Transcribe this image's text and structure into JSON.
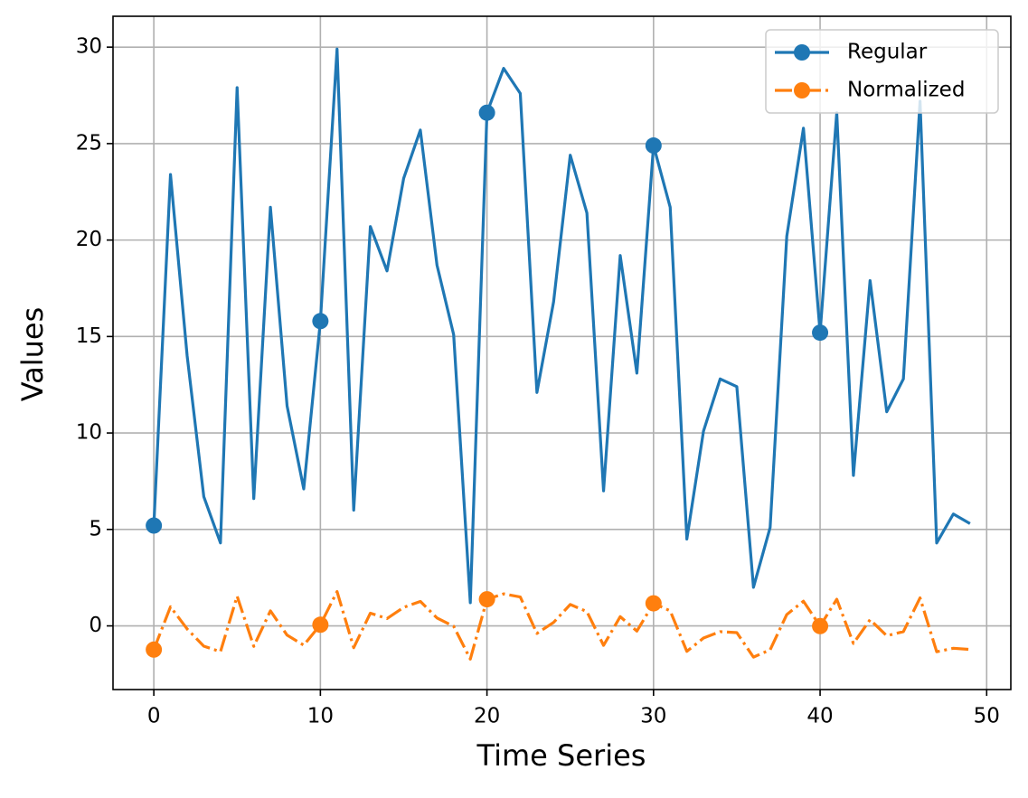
{
  "chart_data": {
    "type": "line",
    "xlabel": "Time Series",
    "ylabel": "Values",
    "x": [
      0,
      1,
      2,
      3,
      4,
      5,
      6,
      7,
      8,
      9,
      10,
      11,
      12,
      13,
      14,
      15,
      16,
      17,
      18,
      19,
      20,
      21,
      22,
      23,
      24,
      25,
      26,
      27,
      28,
      29,
      30,
      31,
      32,
      33,
      34,
      35,
      36,
      37,
      38,
      39,
      40,
      41,
      42,
      43,
      44,
      45,
      46,
      47,
      48,
      49
    ],
    "series": [
      {
        "name": "Regular",
        "color": "#1f77b4",
        "linestyle": "solid",
        "markevery": 10,
        "values": [
          5.2,
          23.4,
          14,
          6.7,
          4.3,
          27.9,
          6.6,
          21.7,
          11.4,
          7.1,
          15.8,
          29.9,
          6.0,
          20.7,
          18.4,
          23.2,
          25.7,
          18.7,
          15.1,
          1.2,
          26.6,
          28.9,
          27.6,
          12.1,
          16.8,
          24.4,
          21.4,
          7.0,
          19.2,
          13.1,
          24.9,
          21.7,
          4.5,
          10.1,
          12.8,
          12.4,
          2.0,
          5.1,
          20.2,
          25.8,
          15.2,
          26.6,
          7.8,
          17.9,
          11.1,
          12.8,
          27.2,
          4.3,
          5.8,
          5.3
        ]
      },
      {
        "name": "Normalized",
        "color": "#ff7f0e",
        "linestyle": "dashdot",
        "markevery": 10,
        "values": [
          -1.23,
          0.99,
          -0.16,
          -1.05,
          -1.34,
          1.54,
          -1.06,
          0.78,
          -0.48,
          -1.0,
          0.06,
          1.78,
          -1.13,
          0.66,
          0.38,
          0.96,
          1.27,
          0.41,
          -0.02,
          -1.72,
          1.38,
          1.66,
          1.5,
          -0.39,
          0.18,
          1.11,
          0.74,
          -1.01,
          0.48,
          -0.27,
          1.17,
          0.78,
          -1.32,
          -0.63,
          -0.3,
          -0.35,
          -1.62,
          -1.24,
          0.59,
          1.28,
          -0.01,
          1.38,
          -0.91,
          0.32,
          -0.51,
          -0.3,
          1.45,
          -1.34,
          -1.16,
          -1.22
        ]
      }
    ],
    "xlim": [
      -2.45,
      51.45
    ],
    "ylim": [
      -3.3,
      31.6
    ],
    "xticks": [
      0,
      10,
      20,
      30,
      40,
      50
    ],
    "yticks": [
      0,
      5,
      10,
      15,
      20,
      25,
      30
    ],
    "grid": true,
    "legend": "upper right"
  }
}
